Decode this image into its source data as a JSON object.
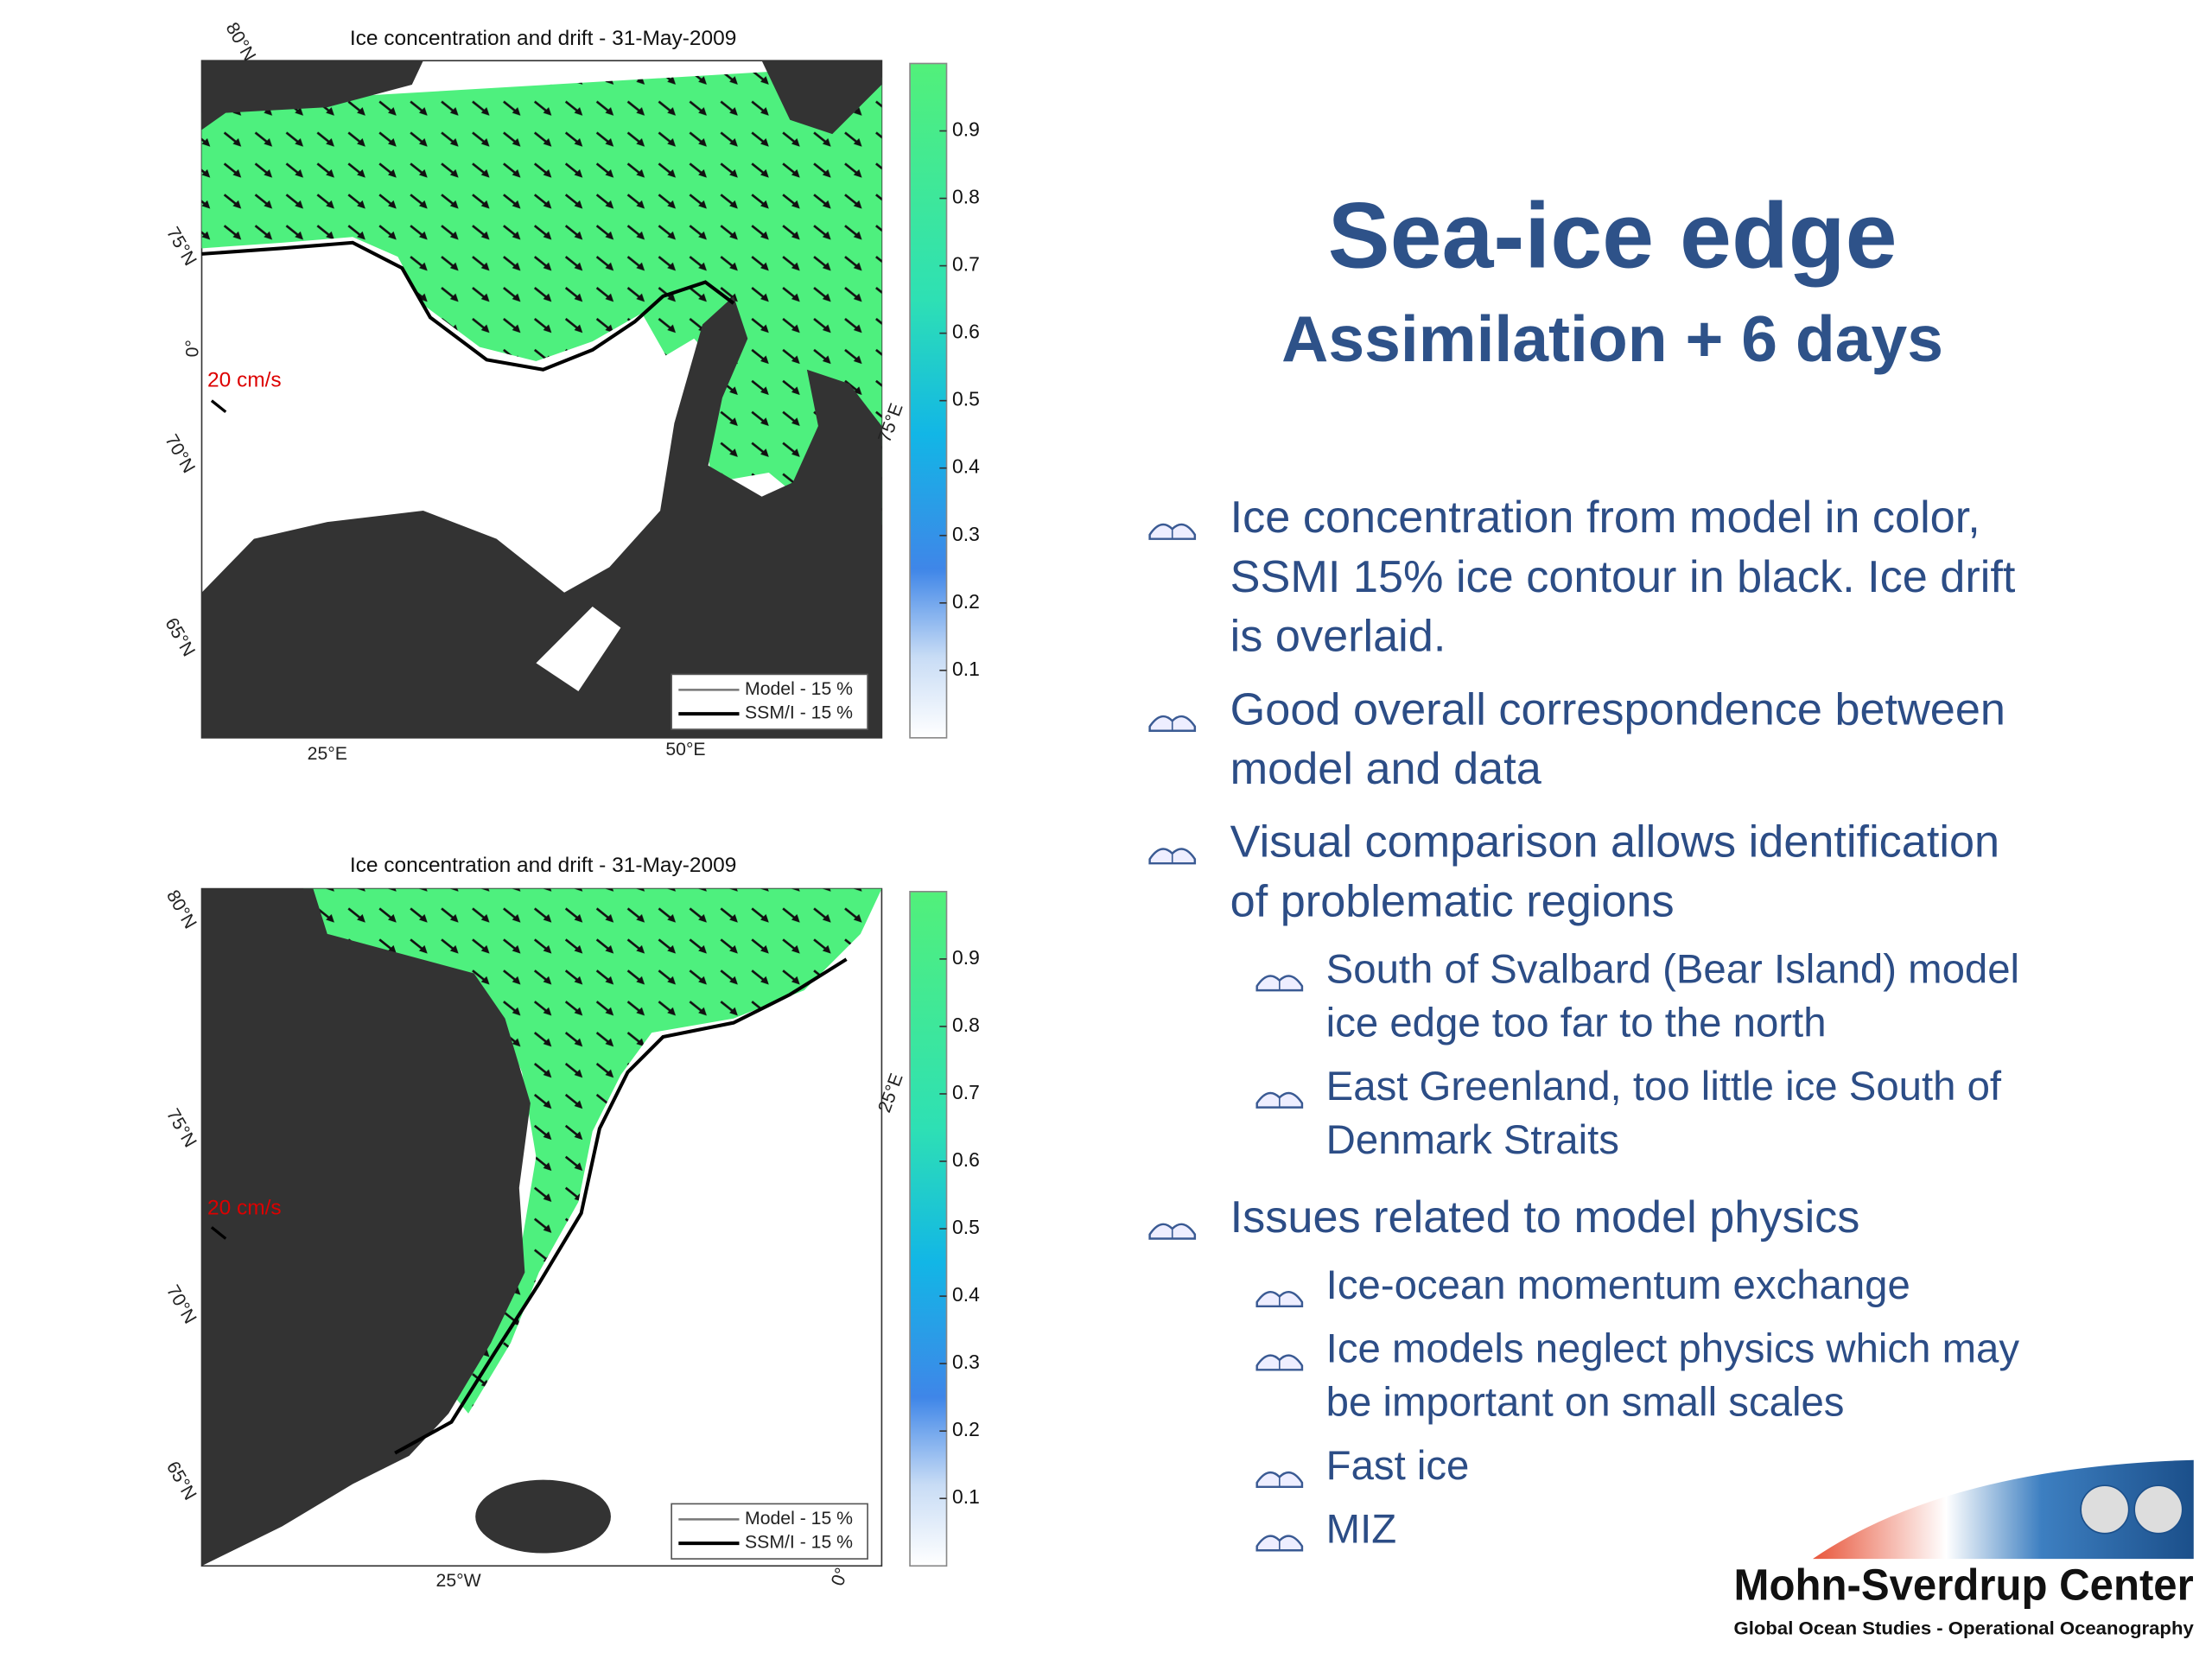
{
  "title": "Sea-ice edge",
  "subtitle": "Assimilation + 6 days",
  "bullets": [
    {
      "lines": [
        "Ice concentration from model in color,",
        "SSMI 15% ice contour in black. Ice drift",
        "is overlaid."
      ],
      "sub": []
    },
    {
      "lines": [
        "Good overall correspondence between",
        "model and data"
      ],
      "sub": []
    },
    {
      "lines": [
        "Visual comparison allows identification",
        "of problematic regions"
      ],
      "sub": [
        {
          "lines": [
            "South of Svalbard (Bear Island) model",
            "ice edge too far to the north"
          ]
        },
        {
          "lines": [
            "East Greenland, too little ice South of",
            "Denmark Straits"
          ]
        }
      ]
    },
    {
      "lines": [
        "Issues related to model physics"
      ],
      "sub": [
        {
          "lines": [
            "Ice-ocean momentum exchange"
          ]
        },
        {
          "lines": [
            "Ice models neglect physics which may",
            "be important on small scales"
          ]
        },
        {
          "lines": [
            "Fast ice"
          ]
        },
        {
          "lines": [
            "MIZ"
          ]
        }
      ]
    }
  ],
  "maps": [
    {
      "title": "Ice concentration and drift - 31-May-2009",
      "scale_label": "20 cm/s",
      "grid_labels": [
        "80°N",
        "75°N",
        "70°N",
        "65°N",
        "0°",
        "25°E",
        "50°E",
        "75°E"
      ],
      "legend": [
        "Model - 15 %",
        "SSM/I - 15 %"
      ],
      "colorbar_ticks": [
        0.9,
        0.8,
        0.7,
        0.6,
        0.5,
        0.4,
        0.3,
        0.2,
        0.1
      ]
    },
    {
      "title": "Ice concentration and drift - 31-May-2009",
      "scale_label": "20 cm/s",
      "grid_labels": [
        "80°N",
        "75°N",
        "70°N",
        "65°N",
        "25°W",
        "0°",
        "25°E"
      ],
      "legend": [
        "Model - 15 %",
        "SSM/I - 15 %"
      ],
      "colorbar_ticks": [
        0.9,
        0.8,
        0.7,
        0.6,
        0.5,
        0.4,
        0.3,
        0.2,
        0.1
      ]
    }
  ],
  "logo": {
    "name": "Mohn-Sverdrup Center",
    "tagline": "Global Ocean Studies - Operational Oceanography"
  }
}
